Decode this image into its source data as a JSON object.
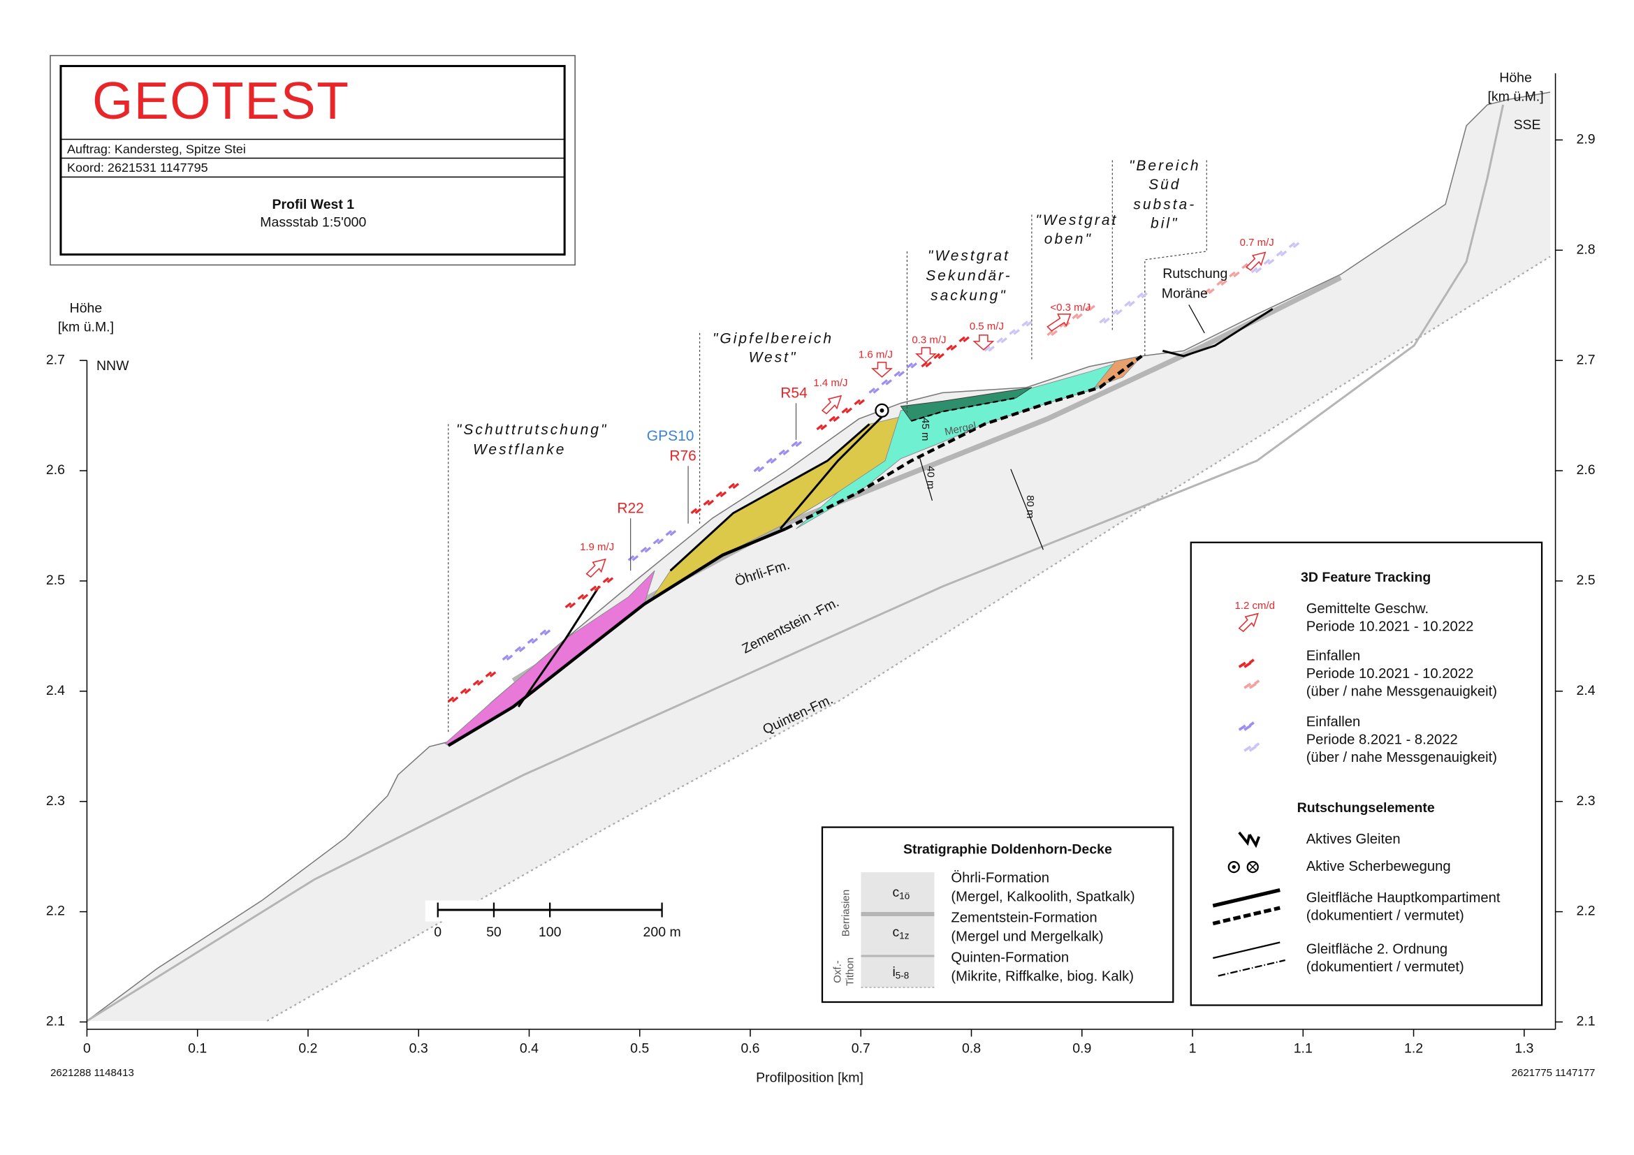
{
  "title_block": {
    "logo": "GEOTEST",
    "order": "Auftrag: Kandersteg, Spitze Stei",
    "coordinates": "Koord: 2621531 1147795",
    "profile": "Profil West 1",
    "scale": "Massstab 1:5'000"
  },
  "axes": {
    "y_title_left": [
      "Höhe",
      "[km ü.M.]"
    ],
    "y_title_right": [
      "Höhe",
      "[km ü.M.]"
    ],
    "x_title": "Profilposition [km]",
    "xlim": [
      0,
      1.33
    ],
    "ylim": [
      2.1,
      2.96
    ],
    "xticks": [
      0,
      0.1,
      0.2,
      0.3,
      0.4,
      0.5,
      0.6,
      0.7,
      0.8,
      0.9,
      1,
      1.1,
      1.2,
      1.3
    ],
    "yticks_left": [
      2.1,
      2.2,
      2.3,
      2.4,
      2.5,
      2.6,
      2.7
    ],
    "yticks_right": [
      2.1,
      2.2,
      2.3,
      2.4,
      2.5,
      2.6,
      2.7,
      2.8,
      2.9
    ],
    "direction_left": "NNW",
    "direction_right": "SSE",
    "coord_left": "2621288 1148413",
    "coord_right": "2621775 1147177"
  },
  "zones": [
    {
      "lines": [
        "\"Schuttrutschung\"",
        "Westflanke"
      ]
    },
    {
      "lines": [
        "\"Gipfelbereich",
        "West\""
      ]
    },
    {
      "lines": [
        "\"Westgrat",
        "Sekundär-",
        "sackung\""
      ]
    },
    {
      "lines": [
        "\"Westgrat",
        "oben\""
      ]
    },
    {
      "lines": [
        "\"Bereich",
        "Süd",
        "substa-",
        "bil\""
      ]
    }
  ],
  "measurement_points": [
    "GPS10",
    "R76",
    "R22",
    "R54"
  ],
  "velocities": [
    "1.9 m/J",
    "1.4 m/J",
    "1.6 m/J",
    "0.3 m/J",
    "0.5 m/J",
    "<0.3 m/J",
    "0.7 m/J"
  ],
  "formations": [
    "Öhrli-Fm.",
    "Zementstein -Fm.",
    "Quinten-Fm.",
    "Mergel"
  ],
  "thickness": [
    "45 m",
    "40 m",
    "80 m"
  ],
  "landslide_moraine": [
    "Rutschung",
    "Moräne"
  ],
  "scale_bar": {
    "ticks": [
      0,
      50,
      100,
      {
        "value": 200,
        "label": "200 m"
      }
    ]
  },
  "legend_3d": {
    "title": "3D Feature Tracking",
    "sample_velocity": "1.2 cm/d",
    "items": [
      [
        "Gemittelte Geschw.",
        "Periode 10.2021 - 10.2022"
      ],
      [
        "Einfallen",
        "Periode 10.2021 - 10.2022",
        "(über / nahe Messgenauigkeit)"
      ],
      [
        "Einfallen",
        "Periode 8.2021 - 8.2022",
        "(über / nahe Messgenauigkeit)"
      ]
    ],
    "section": "Rutschungselemente",
    "elements": [
      [
        "Aktives Gleiten"
      ],
      [
        "Aktive Scherbewegung"
      ],
      [
        "Gleitfläche Hauptkompartiment",
        "(dokumentiert / vermutet)"
      ],
      [
        "Gleitfläche 2. Ordnung",
        "(dokumentiert / vermutet)"
      ]
    ]
  },
  "legend_strat": {
    "title": "Stratigraphie Doldenhorn-Decke",
    "stage_upper": "Berriasien",
    "stage_lower": [
      "Oxf.-",
      "Tithon"
    ],
    "rows": [
      {
        "code": "c",
        "sub": "1ö",
        "lines": [
          "Öhrli-Formation",
          "(Mergel, Kalkoolith, Spatkalk)"
        ]
      },
      {
        "code": "c",
        "sub": "1z",
        "lines": [
          "Zementstein-Formation",
          "(Mergel und Mergelkalk)"
        ]
      },
      {
        "code": "i",
        "sub": "5-8",
        "lines": [
          "Quinten-Formation",
          "(Mikrite, Riffkalke, biog. Kalk)"
        ]
      }
    ]
  }
}
